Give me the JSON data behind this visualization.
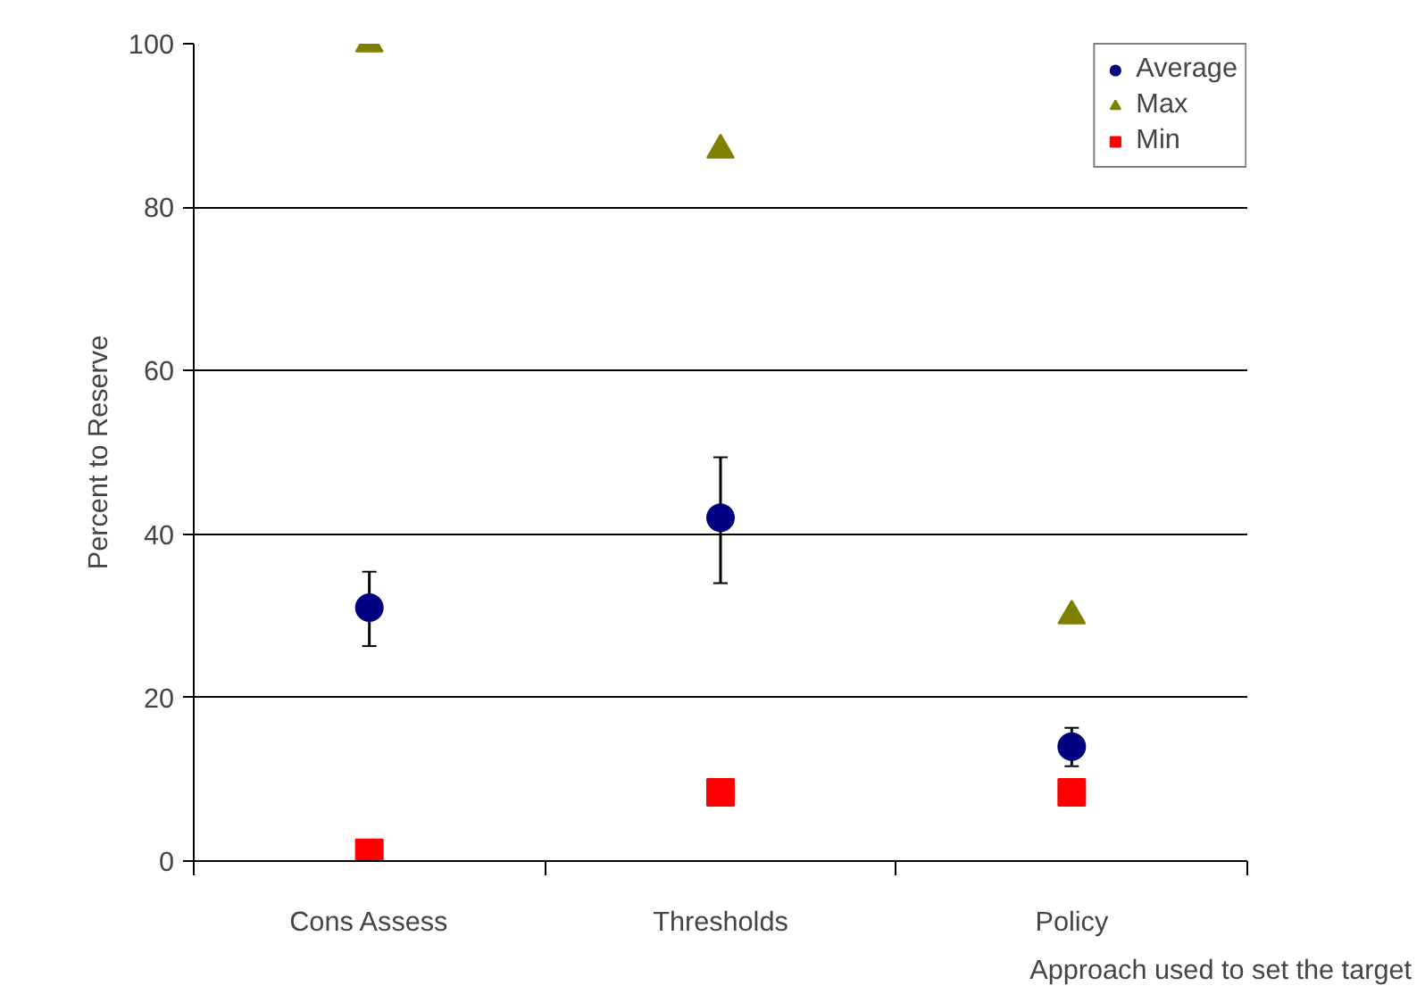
{
  "chart_data": {
    "type": "scatter",
    "xlabel": "Approach used to set the target",
    "ylabel": "Percent to Reserve",
    "categories": [
      "Cons Assess",
      "Thresholds",
      "Policy"
    ],
    "series": [
      {
        "name": "Average",
        "color": "#000080",
        "marker": "circle",
        "values": [
          31,
          42,
          14
        ],
        "errors": [
          [
            26.3,
            35.4
          ],
          [
            34,
            49.4
          ],
          [
            11.6,
            16.3
          ]
        ]
      },
      {
        "name": "Max",
        "color": "#808000",
        "marker": "triangle",
        "values": [
          100,
          87,
          30
        ]
      },
      {
        "name": "Min",
        "color": "#ff0000",
        "marker": "square",
        "values": [
          1,
          8.4,
          8.4
        ]
      }
    ],
    "ylim": [
      0,
      100
    ],
    "yticks": [
      0,
      20,
      40,
      60,
      80,
      100
    ],
    "grid": "y",
    "legend": "top right"
  }
}
